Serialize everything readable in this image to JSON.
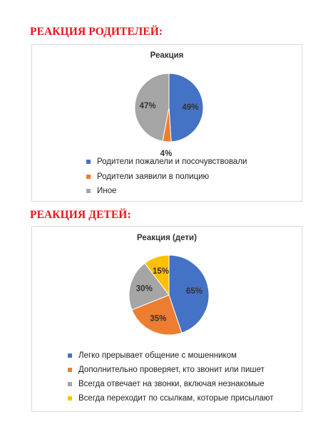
{
  "sections": [
    {
      "heading": "РЕАКЦИЯ РОДИТЕЛЕЙ:",
      "chart": {
        "title": "Реакция",
        "slices": [
          {
            "label": "Родители пожалели и посочувствовали",
            "value": 49,
            "display": "49%",
            "color": "#4472c4"
          },
          {
            "label": "Родители заявили в полицию",
            "value": 4,
            "display": "4%",
            "color": "#ed7d31"
          },
          {
            "label": "Иное",
            "value": 47,
            "display": "47%",
            "color": "#a5a5a5"
          }
        ]
      }
    },
    {
      "heading": "РЕАКЦИЯ ДЕТЕЙ:",
      "chart": {
        "title": "Реакция (дети)",
        "slices": [
          {
            "label": "Легко прерывает общение с мошенником",
            "value": 65,
            "display": "65%",
            "color": "#4472c4"
          },
          {
            "label": "Дополнительно проверяет, кто звонит или пишет",
            "value": 35,
            "display": "35%",
            "color": "#ed7d31"
          },
          {
            "label": "Всегда отвечает на звонки, включая незнакомые",
            "value": 30,
            "display": "30%",
            "color": "#a5a5a5"
          },
          {
            "label": "Всегда переходит по ссылкам, которые присылают",
            "value": 15,
            "display": "15%",
            "color": "#ffc000"
          }
        ]
      }
    }
  ],
  "chart_data": [
    {
      "type": "pie",
      "title": "Реакция",
      "categories": [
        "Родители пожалели и посочувствовали",
        "Родители заявили в полицию",
        "Иное"
      ],
      "values": [
        49,
        4,
        47
      ],
      "legend": "bottom"
    },
    {
      "type": "pie",
      "title": "Реакция (дети)",
      "categories": [
        "Легко прерывает общение с мошенником",
        "Дополнительно проверяет, кто звонит или пишет",
        "Всегда отвечает на звонки, включая незнакомые",
        "Всегда переходит по ссылкам, которые присылают"
      ],
      "values": [
        65,
        35,
        30,
        15
      ],
      "legend": "bottom"
    }
  ]
}
